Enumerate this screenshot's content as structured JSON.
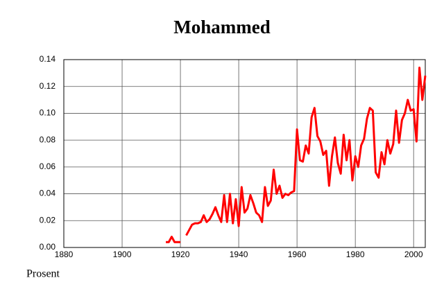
{
  "chart_data": {
    "type": "line",
    "title": "Mohammed",
    "ylabel": "Prosent",
    "x": [
      1915,
      1916,
      1917,
      1918,
      1919,
      1920,
      1921,
      1922,
      1923,
      1924,
      1925,
      1926,
      1927,
      1928,
      1929,
      1930,
      1931,
      1932,
      1933,
      1934,
      1935,
      1936,
      1937,
      1938,
      1939,
      1940,
      1941,
      1942,
      1943,
      1944,
      1945,
      1946,
      1947,
      1948,
      1949,
      1950,
      1951,
      1952,
      1953,
      1954,
      1955,
      1956,
      1957,
      1958,
      1959,
      1960,
      1961,
      1962,
      1963,
      1964,
      1965,
      1966,
      1967,
      1968,
      1969,
      1970,
      1971,
      1972,
      1973,
      1974,
      1975,
      1976,
      1977,
      1978,
      1979,
      1980,
      1981,
      1982,
      1983,
      1984,
      1985,
      1986,
      1987,
      1988,
      1989,
      1990,
      1991,
      1992,
      1993,
      1994,
      1995,
      1996,
      1997,
      1998,
      1999,
      2000,
      2001,
      2002,
      2003,
      2004
    ],
    "series": [
      {
        "color": "#ff0000",
        "values": [
          0.004,
          0.004,
          0.008,
          0.004,
          0.004,
          0.004,
          null,
          0.009,
          0.013,
          0.017,
          0.018,
          0.018,
          0.019,
          0.024,
          0.019,
          0.021,
          0.025,
          0.03,
          0.024,
          0.019,
          0.039,
          0.019,
          0.04,
          0.018,
          0.036,
          0.016,
          0.045,
          0.026,
          0.029,
          0.039,
          0.033,
          0.026,
          0.024,
          0.019,
          0.045,
          0.031,
          0.035,
          0.058,
          0.04,
          0.046,
          0.037,
          0.04,
          0.039,
          0.041,
          0.042,
          0.088,
          0.065,
          0.064,
          0.076,
          0.07,
          0.097,
          0.104,
          0.083,
          0.079,
          0.069,
          0.072,
          0.046,
          0.068,
          0.082,
          0.063,
          0.055,
          0.084,
          0.065,
          0.08,
          0.05,
          0.068,
          0.06,
          0.076,
          0.081,
          0.096,
          0.104,
          0.102,
          0.056,
          0.052,
          0.071,
          0.062,
          0.08,
          0.07,
          0.077,
          0.102,
          0.078,
          0.095,
          0.1,
          0.11,
          0.102,
          0.103,
          0.079,
          0.134,
          0.11,
          0.128
        ]
      }
    ],
    "xlim": [
      1880,
      2004
    ],
    "xticks": [
      1880,
      1900,
      1920,
      1940,
      1960,
      1980,
      2000
    ],
    "ylim": [
      0,
      0.14
    ],
    "yticks": [
      {
        "value": 0,
        "label": "0.00"
      },
      {
        "value": 0.02,
        "label": "0.02"
      },
      {
        "value": 0.04,
        "label": "0.04"
      },
      {
        "value": 0.06,
        "label": "0.06"
      },
      {
        "value": 0.08,
        "label": "0.08"
      },
      {
        "value": 0.1,
        "label": "0.10"
      },
      {
        "value": 0.12,
        "label": "0.12"
      },
      {
        "value": 0.14,
        "label": "0.14"
      }
    ],
    "grid": true
  }
}
